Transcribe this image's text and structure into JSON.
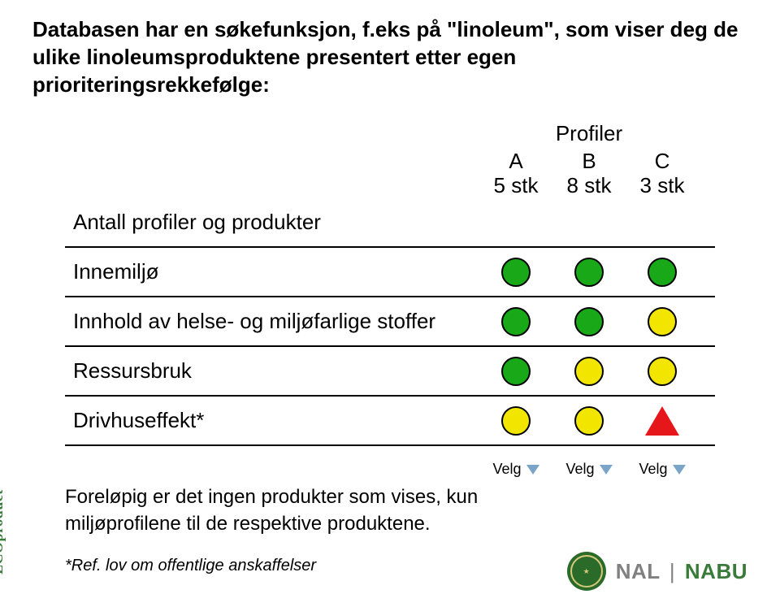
{
  "title_line1": "Databasen har en søkefunksjon, f.eks på \"linoleum\", som viser deg de ulike linoleumsproduktene presentert etter egen prioriteringsrekkefølge:",
  "profiler_header": "Profiler",
  "columns": [
    {
      "h1": "A",
      "h2": "5 stk"
    },
    {
      "h1": "B",
      "h2": "8 stk"
    },
    {
      "h1": "C",
      "h2": "3 stk"
    }
  ],
  "rows": [
    {
      "label": "Antall profiler og produkter",
      "cells": [
        null,
        null,
        null
      ]
    },
    {
      "label": "Innemiljø",
      "cells": [
        {
          "shape": "circle",
          "fill": "#18a818"
        },
        {
          "shape": "circle",
          "fill": "#18a818"
        },
        {
          "shape": "circle",
          "fill": "#18a818"
        }
      ]
    },
    {
      "label": "Innhold av helse- og miljøfarlige stoffer",
      "cells": [
        {
          "shape": "circle",
          "fill": "#18a818"
        },
        {
          "shape": "circle",
          "fill": "#18a818"
        },
        {
          "shape": "circle",
          "fill": "#f2e600"
        }
      ]
    },
    {
      "label": "Ressursbruk",
      "cells": [
        {
          "shape": "circle",
          "fill": "#18a818"
        },
        {
          "shape": "circle",
          "fill": "#f2e600"
        },
        {
          "shape": "circle",
          "fill": "#f2e600"
        }
      ]
    },
    {
      "label": "Drivhuseffekt*",
      "cells": [
        {
          "shape": "circle",
          "fill": "#f2e600"
        },
        {
          "shape": "circle",
          "fill": "#f2e600"
        },
        {
          "shape": "triangle",
          "fill": "#e6171a"
        }
      ]
    }
  ],
  "velg_label": "Velg",
  "footer_text": "Foreløpig er det ingen produkter som vises, kun miljøprofilene til de respektive produktene.",
  "ref_text": "*Ref. lov om offentlige anskaffelser",
  "side_label": "ECOproduct",
  "brand_nal": "NAL",
  "brand_sep": "|",
  "brand_nabu": "NABU",
  "shape_colors": {
    "green": "#18a818",
    "yellow": "#f2e600",
    "red": "#e6171a",
    "border": "#000000"
  },
  "velg_triangle_color": "#7aa5c9"
}
